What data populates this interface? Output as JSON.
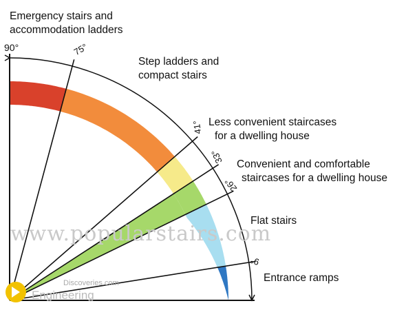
{
  "colors": {
    "red": "#d9412b",
    "orange": "#f28c3c",
    "yellow": "#f6ea8a",
    "green": "#a6d86a",
    "light_blue": "#a8def0",
    "dark_blue": "#2f78c3",
    "line": "#111111"
  },
  "diagram": {
    "angles": [
      {
        "value": 90,
        "label": "90°"
      },
      {
        "value": 75,
        "label": "75°"
      },
      {
        "value": 41,
        "label": "41°"
      },
      {
        "value": 33,
        "label": "33°"
      },
      {
        "value": 26,
        "label": "26°"
      },
      {
        "value": 9,
        "label": "9°"
      }
    ],
    "bands": [
      {
        "from": 75,
        "to": 90,
        "color": "red"
      },
      {
        "from": 41,
        "to": 75,
        "color": "orange"
      },
      {
        "from": 33,
        "to": 41,
        "color": "yellow"
      },
      {
        "from": 26,
        "to": 33,
        "color": "green"
      },
      {
        "from": 9,
        "to": 26,
        "color": "light_blue"
      },
      {
        "from": 0,
        "to": 9,
        "color": "dark_blue"
      }
    ],
    "wedge": {
      "from": 26,
      "to": 33,
      "color": "green"
    }
  },
  "labels": {
    "emergency": {
      "line1": "Emergency stairs and",
      "line2": "accommodation ladders"
    },
    "step": {
      "line1": "Step ladders and",
      "line2": "compact stairs"
    },
    "less": {
      "line1": "Less convenient staircases",
      "line2": "for a dwelling house"
    },
    "convenient": {
      "line1": "Convenient and comfortable",
      "line2": "staircases for a dwelling house"
    },
    "flat": {
      "line1": "Flat  stairs"
    },
    "ramps": {
      "line1": "Entrance ramps"
    }
  },
  "watermark": "www.popularstairs.com",
  "logo": {
    "line1": "Discoveries.com",
    "line2": "Engineering"
  }
}
